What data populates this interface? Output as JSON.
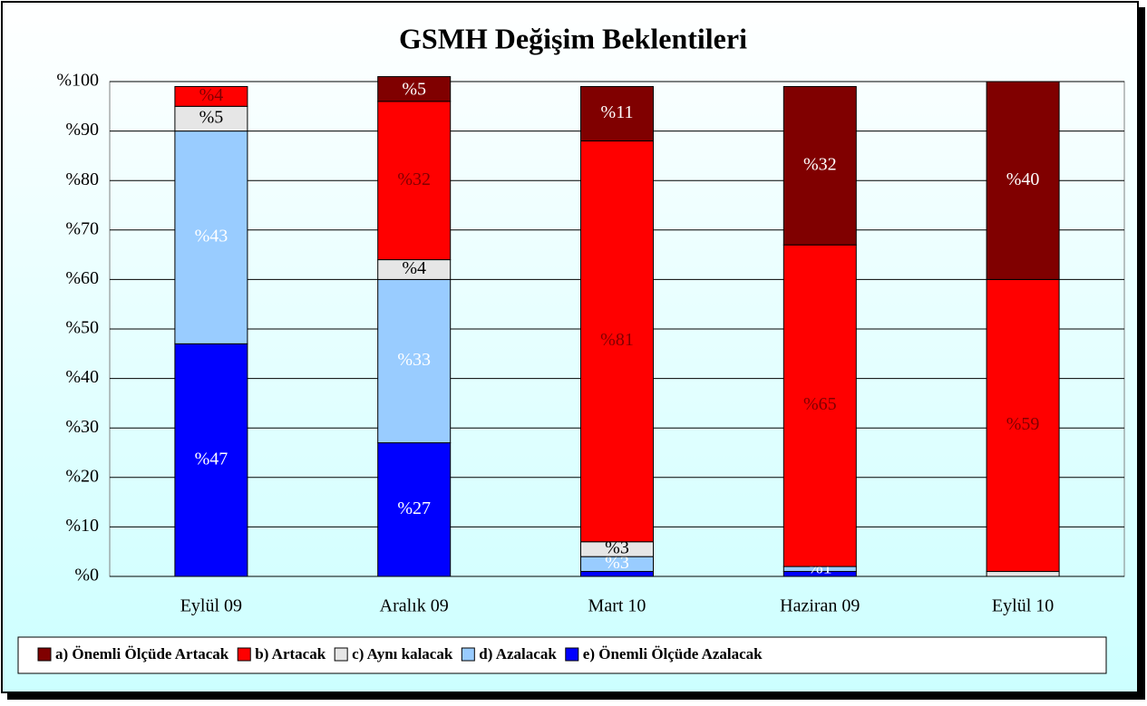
{
  "chart_data": {
    "type": "stacked_bar",
    "title": "GSMH Değişim Beklentileri",
    "categories": [
      "Eylül 09",
      "Aralık 09",
      "Mart 10",
      "Haziran 09",
      "Eylül 10"
    ],
    "ylim": [
      0,
      100
    ],
    "yticks": [
      {
        "value": 0,
        "label": "%0"
      },
      {
        "value": 10,
        "label": "%10"
      },
      {
        "value": 20,
        "label": "%20"
      },
      {
        "value": 30,
        "label": "%30"
      },
      {
        "value": 40,
        "label": "%40"
      },
      {
        "value": 50,
        "label": "%50"
      },
      {
        "value": 60,
        "label": "%60"
      },
      {
        "value": 70,
        "label": "%70"
      },
      {
        "value": 80,
        "label": "%80"
      },
      {
        "value": 90,
        "label": "%90"
      },
      {
        "value": 100,
        "label": "%100"
      }
    ],
    "grid": true,
    "legend": "bottom",
    "series": [
      {
        "name": "e) Önemli Ölçüde Azalacak",
        "color": "#0000ff",
        "values": [
          47,
          27,
          1,
          1,
          0
        ],
        "value_labels": [
          "%47",
          "%27",
          null,
          null,
          null
        ]
      },
      {
        "name": "d)  Azalacak",
        "color": "#99ccff",
        "values": [
          43,
          33,
          3,
          1,
          0
        ],
        "value_labels": [
          "%43",
          "%33",
          "%3",
          "%1",
          null
        ]
      },
      {
        "name": "c) Aynı kalacak",
        "color": "#e6e6e6",
        "values": [
          5,
          4,
          3,
          0,
          1
        ],
        "value_labels": [
          "%5",
          "%4",
          "%3",
          null,
          null
        ]
      },
      {
        "name": "b) Artacak",
        "color": "#ff0000",
        "values": [
          4,
          32,
          81,
          65,
          59
        ],
        "value_labels": [
          "%4",
          "%32",
          "%81",
          "%65",
          "%59"
        ]
      },
      {
        "name": "a) Önemli Ölçüde Artacak",
        "color": "#800000",
        "values": [
          0,
          5,
          11,
          32,
          40
        ],
        "value_labels": [
          null,
          "%5",
          "%11",
          "%32",
          "%40"
        ]
      }
    ]
  }
}
